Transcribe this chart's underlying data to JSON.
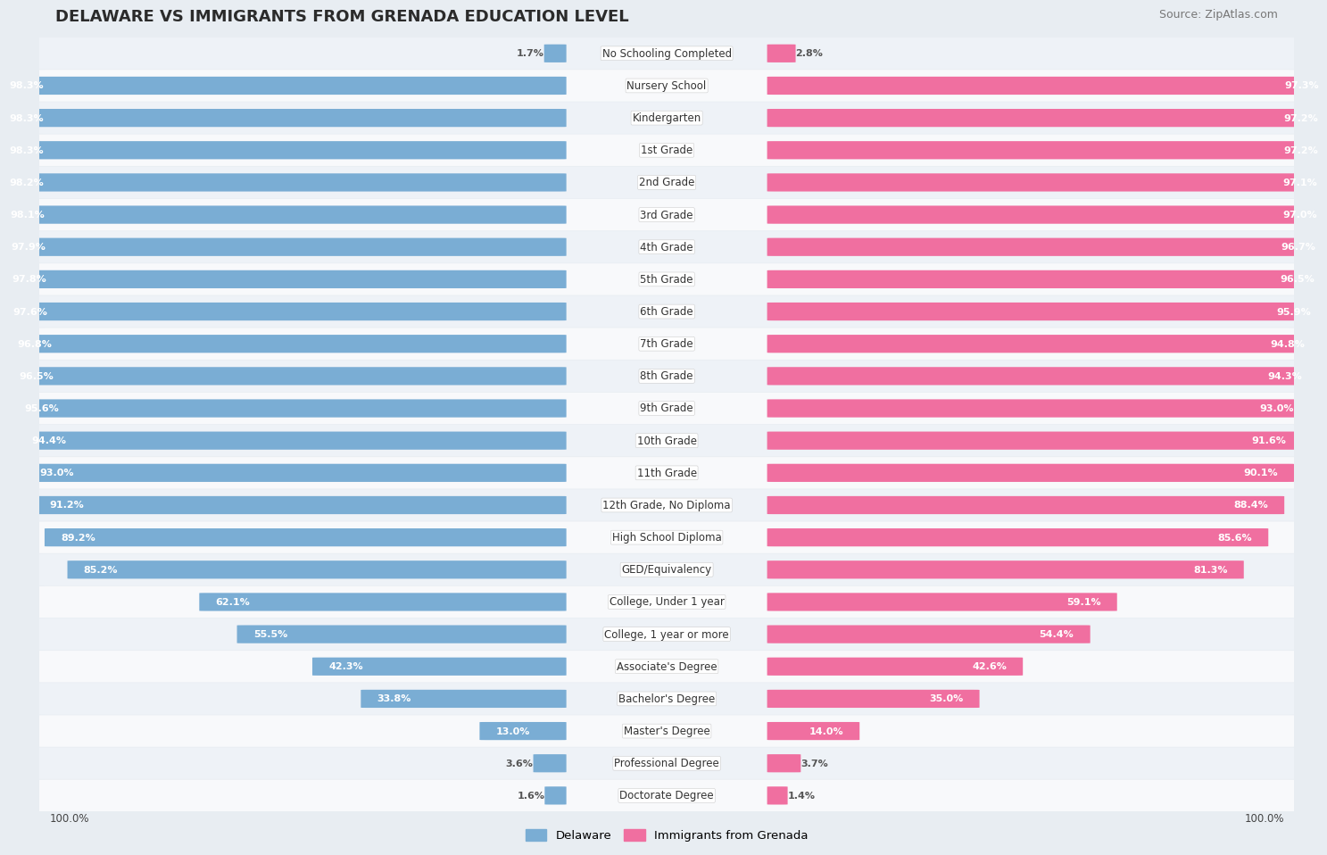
{
  "title": "DELAWARE VS IMMIGRANTS FROM GRENADA EDUCATION LEVEL",
  "source": "Source: ZipAtlas.com",
  "categories": [
    "No Schooling Completed",
    "Nursery School",
    "Kindergarten",
    "1st Grade",
    "2nd Grade",
    "3rd Grade",
    "4th Grade",
    "5th Grade",
    "6th Grade",
    "7th Grade",
    "8th Grade",
    "9th Grade",
    "10th Grade",
    "11th Grade",
    "12th Grade, No Diploma",
    "High School Diploma",
    "GED/Equivalency",
    "College, Under 1 year",
    "College, 1 year or more",
    "Associate's Degree",
    "Bachelor's Degree",
    "Master's Degree",
    "Professional Degree",
    "Doctorate Degree"
  ],
  "delaware": [
    1.7,
    98.3,
    98.3,
    98.3,
    98.2,
    98.1,
    97.9,
    97.8,
    97.6,
    96.8,
    96.5,
    95.6,
    94.4,
    93.0,
    91.2,
    89.2,
    85.2,
    62.1,
    55.5,
    42.3,
    33.8,
    13.0,
    3.6,
    1.6
  ],
  "grenada": [
    2.8,
    97.3,
    97.2,
    97.2,
    97.1,
    97.0,
    96.7,
    96.5,
    95.9,
    94.8,
    94.3,
    93.0,
    91.6,
    90.1,
    88.4,
    85.6,
    81.3,
    59.1,
    54.4,
    42.6,
    35.0,
    14.0,
    3.7,
    1.4
  ],
  "delaware_color": "#7aadd4",
  "grenada_color": "#f06fa0",
  "bg_color": "#e8edf2",
  "row_bg_light": "#eef2f7",
  "row_bg_white": "#f8f9fb",
  "legend_labels": [
    "Delaware",
    "Immigrants from Grenada"
  ],
  "val_color_inside": "#ffffff",
  "val_color_outside": "#555555",
  "label_fontsize": 8.5,
  "val_fontsize": 8.0,
  "title_fontsize": 13,
  "source_fontsize": 9
}
